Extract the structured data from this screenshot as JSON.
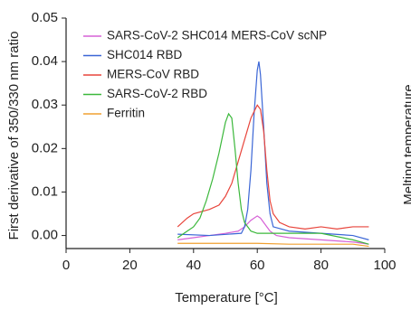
{
  "chart_data": {
    "type": "line",
    "xlabel": "Temperature [°C]",
    "ylabel": "First derivative of 350/330 nm ratio",
    "side_label": "Melting temperature",
    "xlim": [
      0,
      100
    ],
    "xticks": [
      0,
      20,
      40,
      60,
      80,
      100
    ],
    "ylim": [
      -0.003,
      0.05
    ],
    "yticks": [
      {
        "value": 0,
        "label": "0.00"
      },
      0.01,
      0.02,
      0.03,
      0.04,
      0.05
    ],
    "grid": false,
    "legend": "top-left",
    "series": [
      {
        "name": "SARS-CoV-2 SHC014 MERS-CoV scNP",
        "color": "#d660d6",
        "x": [
          35,
          40,
          45,
          50,
          54,
          56,
          58,
          60,
          61,
          62,
          64,
          66,
          70,
          80,
          90,
          95
        ],
        "values": [
          -0.001,
          -0.0005,
          0,
          0.0005,
          0.001,
          0.002,
          0.0035,
          0.0045,
          0.004,
          0.003,
          0.001,
          0,
          -0.0005,
          -0.001,
          -0.0015,
          -0.002
        ]
      },
      {
        "name": "SHC014 RBD",
        "color": "#3b66d6",
        "x": [
          35,
          45,
          55,
          56,
          57,
          58,
          59,
          60,
          60.5,
          61,
          62,
          63,
          64,
          65,
          70,
          80,
          90,
          95
        ],
        "values": [
          0.0003,
          0,
          0.0005,
          0.002,
          0.006,
          0.015,
          0.028,
          0.038,
          0.04,
          0.037,
          0.025,
          0.012,
          0.005,
          0.002,
          0.001,
          0.0005,
          0,
          -0.001
        ]
      },
      {
        "name": "MERS-CoV RBD",
        "color": "#e8453c",
        "x": [
          35,
          38,
          40,
          45,
          48,
          50,
          52,
          54,
          56,
          58,
          60,
          61,
          62,
          63,
          64,
          65,
          67,
          70,
          75,
          80,
          85,
          90,
          95
        ],
        "values": [
          0.002,
          0.004,
          0.005,
          0.006,
          0.007,
          0.009,
          0.012,
          0.017,
          0.022,
          0.027,
          0.03,
          0.029,
          0.024,
          0.015,
          0.008,
          0.005,
          0.003,
          0.002,
          0.0015,
          0.002,
          0.0015,
          0.002,
          0.002
        ]
      },
      {
        "name": "SARS-CoV-2 RBD",
        "color": "#3cb83c",
        "x": [
          35,
          38,
          40,
          42,
          44,
          46,
          48,
          50,
          51,
          52,
          53,
          54,
          55,
          56,
          58,
          60,
          70,
          80,
          90,
          95
        ],
        "values": [
          -0.0005,
          0.001,
          0.002,
          0.004,
          0.008,
          0.013,
          0.019,
          0.026,
          0.028,
          0.027,
          0.02,
          0.012,
          0.006,
          0.003,
          0.001,
          0.0005,
          0.0005,
          0.0005,
          -0.001,
          -0.002
        ]
      },
      {
        "name": "Ferritin",
        "color": "#f0a030",
        "x": [
          35,
          50,
          60,
          70,
          80,
          90,
          95
        ],
        "values": [
          -0.0018,
          -0.0018,
          -0.0018,
          -0.002,
          -0.002,
          -0.002,
          -0.0025
        ]
      }
    ]
  }
}
